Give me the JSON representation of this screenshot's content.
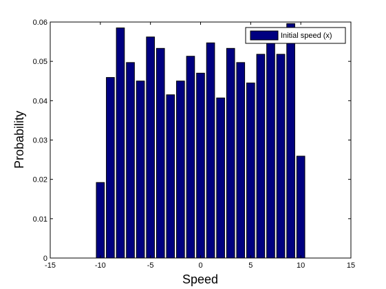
{
  "chart_data": {
    "type": "bar",
    "title": "",
    "xlabel": "Speed",
    "ylabel": "Probability",
    "xlim": [
      -15,
      15
    ],
    "ylim": [
      0,
      0.06
    ],
    "xticks": [
      -15,
      -10,
      -5,
      0,
      5,
      10,
      15
    ],
    "yticks": [
      0,
      0.01,
      0.02,
      0.03,
      0.04,
      0.05,
      0.06
    ],
    "xtick_labels": [
      "-15",
      "-10",
      "-5",
      "0",
      "5",
      "10",
      "15"
    ],
    "ytick_labels": [
      "0",
      "0.01",
      "0.02",
      "0.03",
      "0.04",
      "0.05",
      "0.06"
    ],
    "grid": false,
    "legend_position": "top-right",
    "series": [
      {
        "name": "Initial speed (x)",
        "color": "#000080",
        "x": [
          -10,
          -9,
          -8,
          -7,
          -6,
          -5,
          -4,
          -3,
          -2,
          -1,
          0,
          1,
          2,
          3,
          4,
          5,
          6,
          7,
          8,
          9,
          10
        ],
        "values": [
          0.0192,
          0.0459,
          0.0585,
          0.0497,
          0.045,
          0.0562,
          0.0533,
          0.0415,
          0.045,
          0.0513,
          0.047,
          0.0547,
          0.0407,
          0.0533,
          0.0497,
          0.0445,
          0.0518,
          0.0558,
          0.0518,
          0.0596,
          0.0259
        ]
      }
    ]
  }
}
